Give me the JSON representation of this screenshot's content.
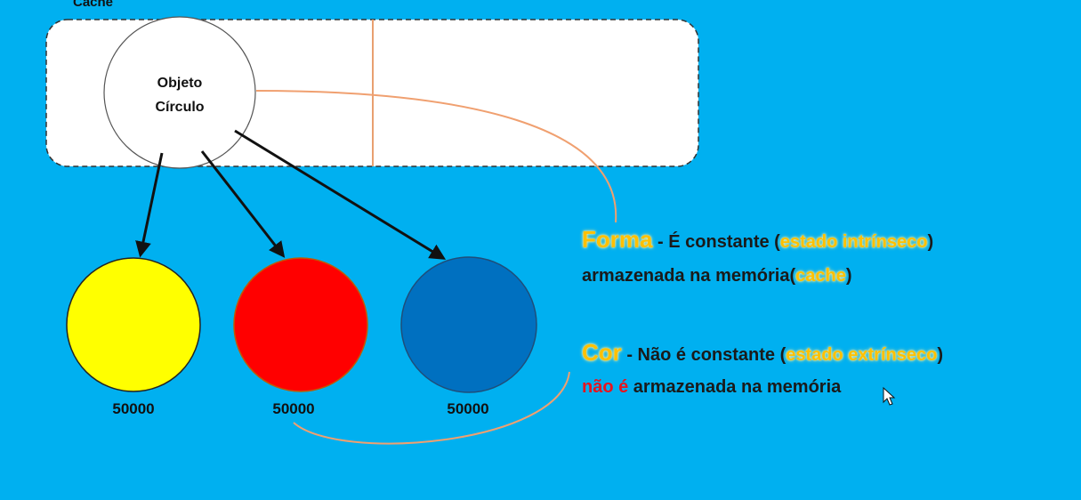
{
  "cache": {
    "label": "Cache",
    "object_line1": "Objeto",
    "object_line2": "Círculo"
  },
  "circles": [
    {
      "color": "#ffff00",
      "count": "50000"
    },
    {
      "color": "#ff0000",
      "count": "50000"
    },
    {
      "color": "#0070c0",
      "count": "50000"
    }
  ],
  "forma": {
    "term": "Forma",
    "sep": " - É constante (",
    "state": "estado intrínseco",
    "close": ")",
    "line2_a": "armazenada na memória(",
    "line2_hl": "cache",
    "line2_b": ")"
  },
  "cor": {
    "term": "Cor",
    "sep": " - Não é constante (",
    "state": "estado extrínseco",
    "close": ")",
    "line2_red": "não é",
    "line2_rest": " armazenada na memória"
  },
  "colors": {
    "background": "#00b0f0",
    "highlight": "#ffc000",
    "connector": "#f0a070",
    "arrow": "#111111"
  }
}
